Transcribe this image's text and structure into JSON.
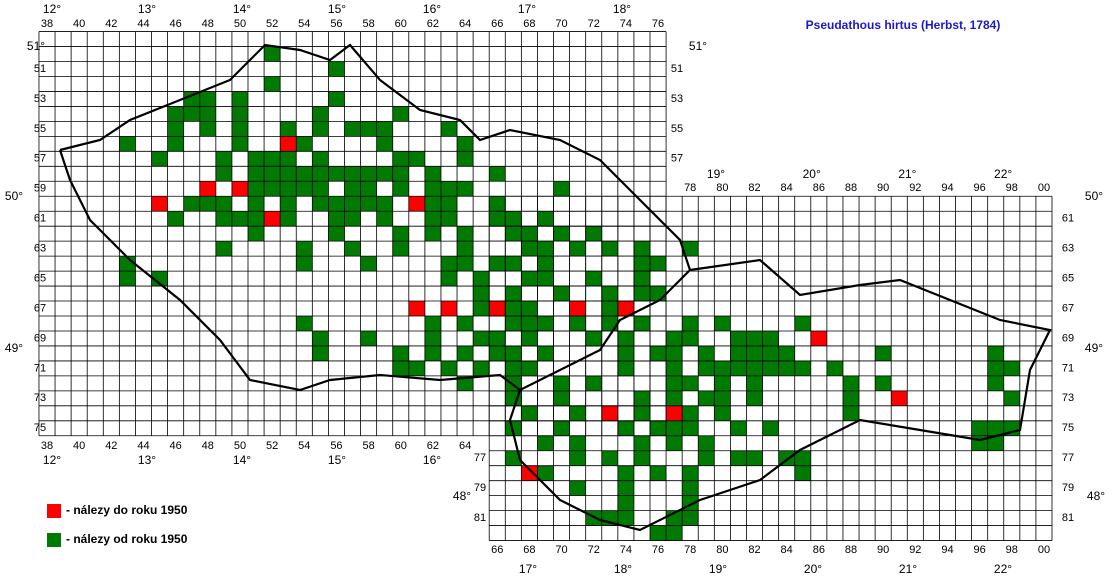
{
  "title": "Pseudathous hirtus (Herbst, 1784)",
  "legend": [
    "- nálezy do roku 1950",
    "- nálezy od roku 1950"
  ],
  "top_degrees": [
    "12°",
    "13°",
    "14°",
    "15°",
    "16°",
    "17°",
    "18°"
  ],
  "top_columns": [
    "38",
    "40",
    "42",
    "44",
    "46",
    "48",
    "50",
    "52",
    "54",
    "56",
    "58",
    "60",
    "62",
    "64",
    "66",
    "68",
    "70",
    "72",
    "74",
    "76"
  ],
  "left_bottom_columns": [
    "38",
    "40",
    "42",
    "44",
    "46",
    "48",
    "50",
    "52",
    "54",
    "56",
    "58",
    "60",
    "62",
    "64"
  ],
  "left_bottom_degrees": [
    "12°",
    "13°",
    "14°",
    "15°",
    "16°"
  ],
  "right_top_degrees": [
    "19°",
    "20°",
    "21°",
    "22°"
  ],
  "right_top_columns": [
    "78",
    "80",
    "82",
    "84",
    "86",
    "88",
    "90",
    "92",
    "94",
    "96",
    "98",
    "00"
  ],
  "right_bottom_columns": [
    "66",
    "68",
    "70",
    "72",
    "74",
    "76",
    "78",
    "80",
    "82",
    "84",
    "86",
    "88",
    "90",
    "92",
    "94",
    "96",
    "98",
    "00"
  ],
  "right_bottom_degrees": [
    "17°",
    "18°",
    "19°",
    "20°",
    "21°",
    "22°"
  ],
  "left_rows": [
    "51",
    "53",
    "55",
    "57",
    "59",
    "61",
    "63",
    "65",
    "67",
    "69",
    "71",
    "73",
    "75"
  ],
  "middle_rows": [
    "51",
    "53",
    "55",
    "57"
  ],
  "right_rows": [
    "61",
    "63",
    "65",
    "67",
    "69",
    "71",
    "73",
    "75",
    "77",
    "79",
    "81"
  ],
  "inner_rows": [
    "77",
    "79",
    "81"
  ],
  "lat_labels": [
    "51°",
    "51°",
    "50°",
    "50°",
    "49°",
    "49°",
    "48°",
    "48°"
  ]
}
